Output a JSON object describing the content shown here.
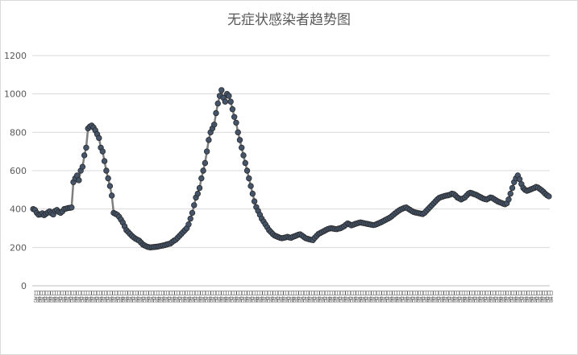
{
  "chart_data": {
    "type": "line",
    "title": "无症状感染者趋势图",
    "xlabel": "",
    "ylabel": "",
    "ylim": [
      0,
      1200
    ],
    "yticks": [
      0,
      200,
      400,
      600,
      800,
      1000,
      1200
    ],
    "grid": "horizontal",
    "legend": "none",
    "series_color": "#7f7f7f",
    "marker_color": "#44546a",
    "x_tick_text": "日期",
    "series": [
      {
        "values": [
          400,
          395,
          380,
          370,
          372,
          378,
          368,
          375,
          382,
          388,
          378,
          372,
          390,
          395,
          385,
          380,
          388,
          400,
          402,
          405,
          406,
          408,
          540,
          560,
          575,
          550,
          600,
          620,
          680,
          720,
          820,
          830,
          835,
          825,
          810,
          790,
          770,
          720,
          700,
          650,
          600,
          560,
          520,
          470,
          380,
          375,
          370,
          360,
          345,
          330,
          310,
          290,
          280,
          270,
          260,
          252,
          245,
          240,
          235,
          225,
          215,
          210,
          205,
          202,
          200,
          201,
          202,
          203,
          204,
          206,
          208,
          210,
          212,
          215,
          218,
          220,
          228,
          235,
          240,
          250,
          260,
          270,
          280,
          290,
          300,
          320,
          350,
          380,
          420,
          460,
          480,
          510,
          560,
          600,
          640,
          700,
          760,
          800,
          820,
          840,
          900,
          950,
          990,
          1020,
          980,
          960,
          1000,
          990,
          960,
          920,
          880,
          850,
          800,
          760,
          720,
          680,
          640,
          600,
          560,
          520,
          480,
          440,
          410,
          390,
          370,
          350,
          335,
          320,
          305,
          290,
          280,
          270,
          262,
          258,
          254,
          250,
          248,
          250,
          252,
          255,
          252,
          250,
          255,
          258,
          262,
          266,
          268,
          262,
          255,
          248,
          245,
          242,
          240,
          238,
          250,
          260,
          270,
          275,
          280,
          285,
          290,
          295,
          298,
          300,
          298,
          296,
          295,
          298,
          300,
          305,
          310,
          318,
          325,
          320,
          315,
          318,
          322,
          325,
          328,
          330,
          328,
          326,
          324,
          322,
          320,
          318,
          316,
          318,
          322,
          326,
          330,
          335,
          340,
          345,
          350,
          355,
          362,
          370,
          378,
          385,
          392,
          398,
          402,
          406,
          408,
          402,
          396,
          390,
          385,
          382,
          380,
          378,
          376,
          374,
          380,
          390,
          400,
          410,
          420,
          430,
          440,
          450,
          458,
          462,
          465,
          468,
          470,
          472,
          475,
          480,
          478,
          470,
          460,
          455,
          450,
          455,
          460,
          470,
          480,
          485,
          482,
          478,
          475,
          470,
          465,
          460,
          455,
          452,
          450,
          455,
          460,
          458,
          452,
          446,
          440,
          436,
          432,
          428,
          425,
          430,
          450,
          480,
          510,
          540,
          560,
          575,
          555,
          530,
          510,
          500,
          495,
          498,
          502,
          506,
          510,
          515,
          512,
          505,
          498,
          490,
          480,
          472,
          466
        ]
      }
    ],
    "x_tick_count": 100
  }
}
